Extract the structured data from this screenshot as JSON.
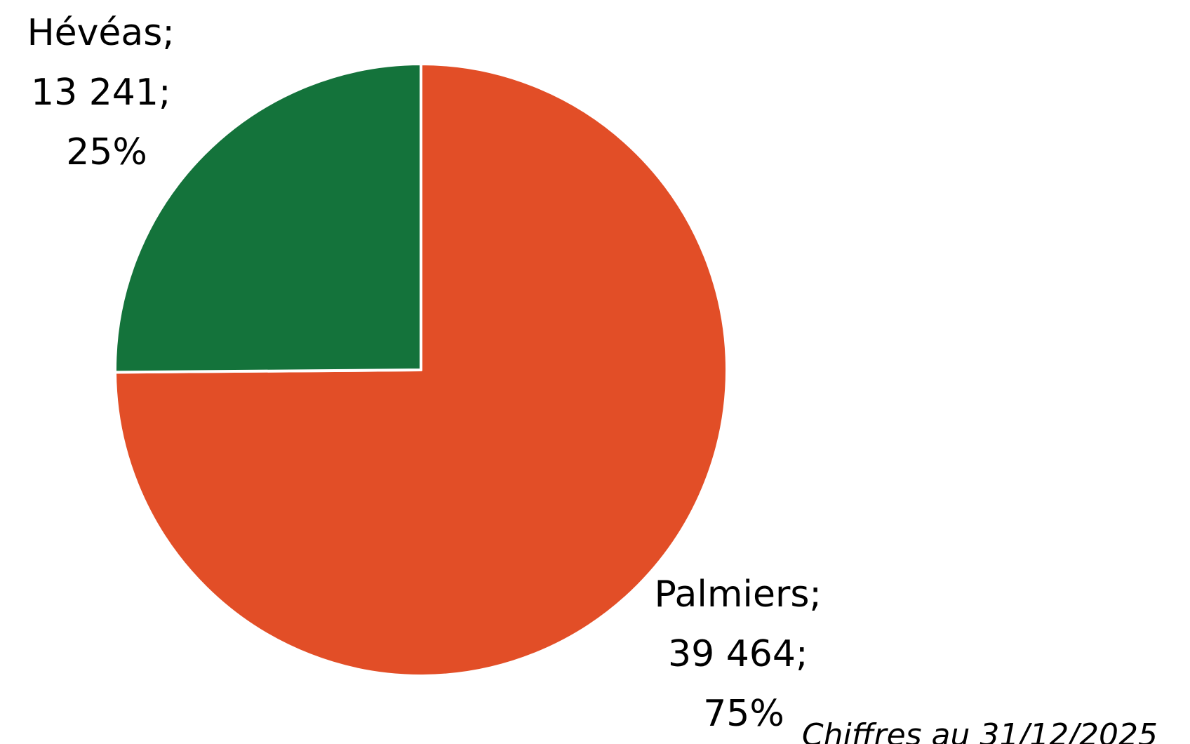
{
  "chart_data": {
    "type": "pie",
    "slices": [
      {
        "name": "Palmiers",
        "value": 39464,
        "percent": 75,
        "color": "#E24E27",
        "label_lines": [
          "Palmiers;",
          "39 464;",
          "75%"
        ]
      },
      {
        "name": "Hévéas",
        "value": 13241,
        "percent": 25,
        "color": "#14733B",
        "label_lines": [
          "Hévéas;",
          "13 241;",
          "25%"
        ]
      }
    ],
    "start_angle_deg": 0,
    "direction": "clockwise",
    "legend": "none",
    "footnote": "Chiffres au 31/12/2025"
  }
}
